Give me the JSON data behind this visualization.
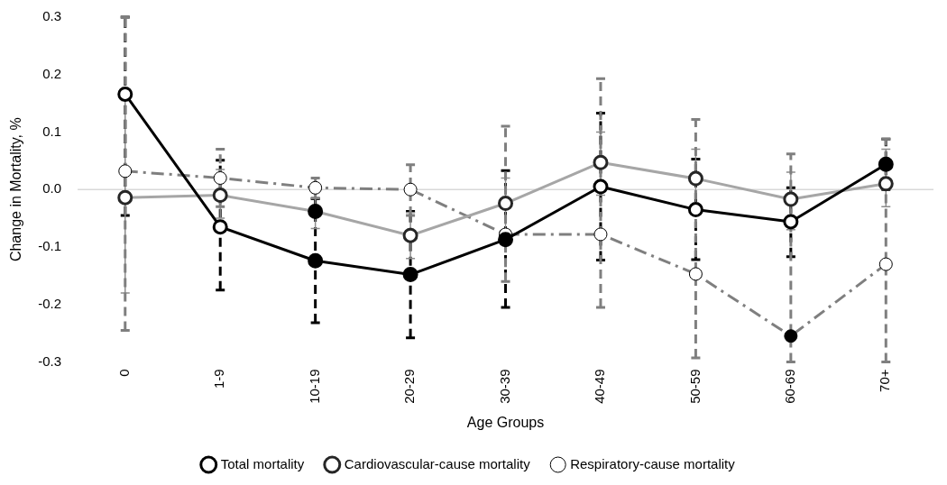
{
  "chart_data": {
    "type": "line",
    "xlabel": "Age Groups",
    "ylabel": "Change in Mortality, %",
    "categories": [
      "0",
      "1-9",
      "10-19",
      "20-29",
      "30-39",
      "40-49",
      "50-59",
      "60-69",
      "70+"
    ],
    "ylim": [
      -0.3,
      0.3
    ],
    "yticks": [
      {
        "value": -0.3,
        "label": "-0.3"
      },
      {
        "value": -0.2,
        "label": "-0.2"
      },
      {
        "value": -0.1,
        "label": "-0.1"
      },
      {
        "value": 0,
        "label": "0.0"
      },
      {
        "value": 0.1,
        "label": "0.1"
      },
      {
        "value": 0.2,
        "label": "0.2"
      },
      {
        "value": 0.3,
        "label": "0.3"
      }
    ],
    "grid": false,
    "legend": "bottom",
    "marker": "circle",
    "series": [
      {
        "name": "Total mortality",
        "color": "#000000",
        "line_style": "solid",
        "values": [
          0.166,
          -0.065,
          -0.124,
          -0.148,
          -0.087,
          0.005,
          -0.035,
          -0.056,
          0.044
        ],
        "colors": [
          "#ffffff",
          "#ffffff",
          "#000000",
          "#000000",
          "#000000",
          "#ffffff",
          "#ffffff",
          "#ffffff",
          "#000000"
        ],
        "errors": [
          [
            -0.045,
            0.3
          ],
          [
            -0.175,
            0.051
          ],
          [
            -0.232,
            -0.016
          ],
          [
            -0.258,
            -0.038
          ],
          [
            -0.205,
            0.033
          ],
          [
            -0.123,
            0.133
          ],
          [
            -0.122,
            0.053
          ],
          [
            -0.117,
            0.003
          ],
          [
            0.0,
            0.088
          ]
        ]
      },
      {
        "name": "Cardiovascular-cause mortality",
        "color": "#a6a6a6",
        "line_style": "solid",
        "values": [
          -0.014,
          -0.01,
          -0.038,
          -0.08,
          -0.024,
          0.047,
          0.019,
          -0.017,
          0.01
        ],
        "colors": [
          "#ffffff",
          "#ffffff",
          "#000000",
          "#ffffff",
          "#ffffff",
          "#ffffff",
          "#ffffff",
          "#ffffff",
          "#ffffff"
        ],
        "errors": [
          [
            -0.18,
            0.155
          ],
          [
            -0.05,
            0.035
          ],
          [
            -0.068,
            -0.005
          ],
          [
            -0.12,
            -0.04
          ],
          [
            -0.07,
            0.02
          ],
          [
            -0.01,
            0.1
          ],
          [
            -0.03,
            0.07
          ],
          [
            -0.07,
            0.03
          ],
          [
            -0.03,
            0.07
          ]
        ]
      },
      {
        "name": "Respiratory-cause mortality",
        "color": "#7f7f7f",
        "line_style": "dashed",
        "values": [
          0.032,
          0.02,
          0.003,
          0.0,
          -0.078,
          -0.078,
          -0.147,
          -0.255,
          -0.13
        ],
        "colors": [
          "#ffffff",
          "#ffffff",
          "#ffffff",
          "#ffffff",
          "#ffffff",
          "#ffffff",
          "#ffffff",
          "#000000",
          "#ffffff"
        ],
        "errors": [
          [
            -0.245,
            0.3
          ],
          [
            -0.03,
            0.07
          ],
          [
            -0.015,
            0.02
          ],
          [
            -0.045,
            0.043
          ],
          [
            -0.16,
            0.11
          ],
          [
            -0.205,
            0.193
          ],
          [
            -0.293,
            0.122
          ],
          [
            -0.3,
            0.062
          ],
          [
            -0.3,
            0.088
          ]
        ]
      }
    ]
  }
}
